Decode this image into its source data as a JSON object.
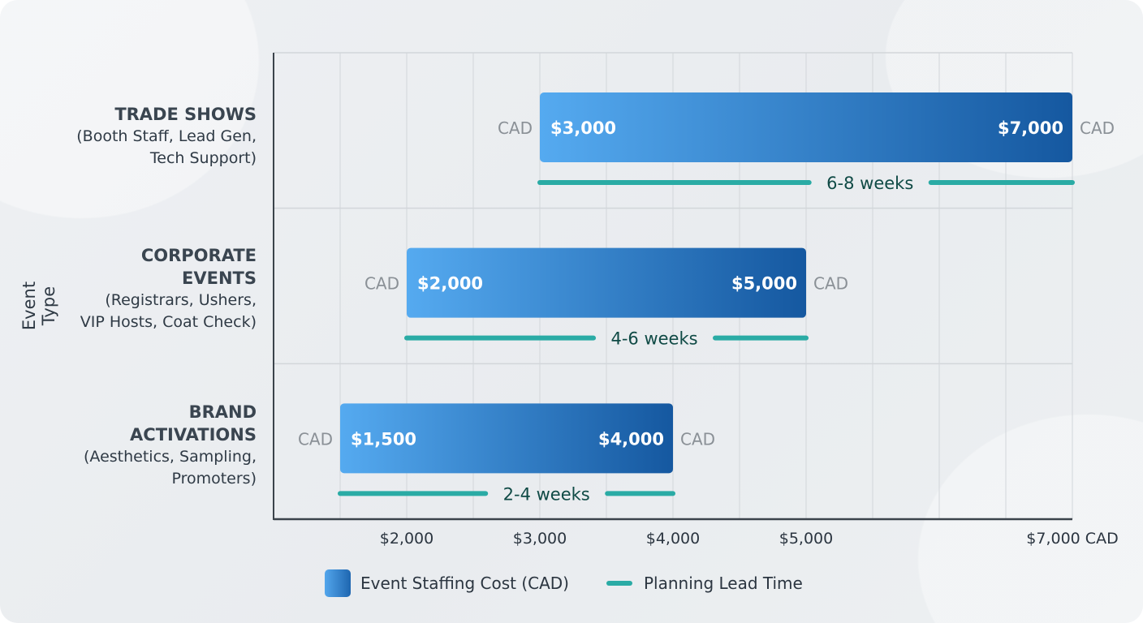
{
  "chart_data": {
    "type": "bar",
    "orientation": "horizontal-range",
    "ylabel": "Event Type",
    "xlim": [
      1000,
      7000
    ],
    "x_ticks": [
      {
        "value": 2000,
        "label": "$2,000"
      },
      {
        "value": 3000,
        "label": "$3,000"
      },
      {
        "value": 4000,
        "label": "$4,000"
      },
      {
        "value": 5000,
        "label": "$5,000"
      },
      {
        "value": 7000,
        "label": "$7,000 CAD"
      }
    ],
    "grid": true,
    "legend_position": "bottom",
    "legend": [
      {
        "label": "Event Staffing Cost (CAD)",
        "color": "#2f80d0"
      },
      {
        "label": "Planning Lead Time",
        "color": "#2aaba5"
      }
    ],
    "unit_label": "CAD",
    "categories": [
      {
        "title": "TRADE SHOWS",
        "detail": [
          "(Booth Staff, Lead Gen,",
          "Tech Support)"
        ],
        "min": 3000,
        "max": 7000,
        "min_label": "$3,000",
        "max_label": "$7,000",
        "lead_time": "6-8 weeks"
      },
      {
        "title": "CORPORATE EVENTS",
        "title_lines": [
          "CORPORATE",
          "EVENTS"
        ],
        "detail": [
          "(Registrars, Ushers,",
          "VIP Hosts, Coat Check)"
        ],
        "min": 2000,
        "max": 5000,
        "min_label": "$2,000",
        "max_label": "$5,000",
        "lead_time": "4-6 weeks"
      },
      {
        "title": "BRAND ACTIVATIONS",
        "title_lines": [
          "BRAND",
          "ACTIVATIONS"
        ],
        "detail": [
          "(Aesthetics, Sampling,",
          "Promoters)"
        ],
        "min": 1500,
        "max": 4000,
        "min_label": "$1,500",
        "max_label": "$4,000",
        "lead_time": "2-4 weeks"
      }
    ],
    "colors": {
      "bar_start": "#55aaf0",
      "bar_end": "#1558a0",
      "lead_line": "#2aaba5",
      "lead_text": "#0f4a45",
      "cad_text": "#8a9096"
    }
  }
}
